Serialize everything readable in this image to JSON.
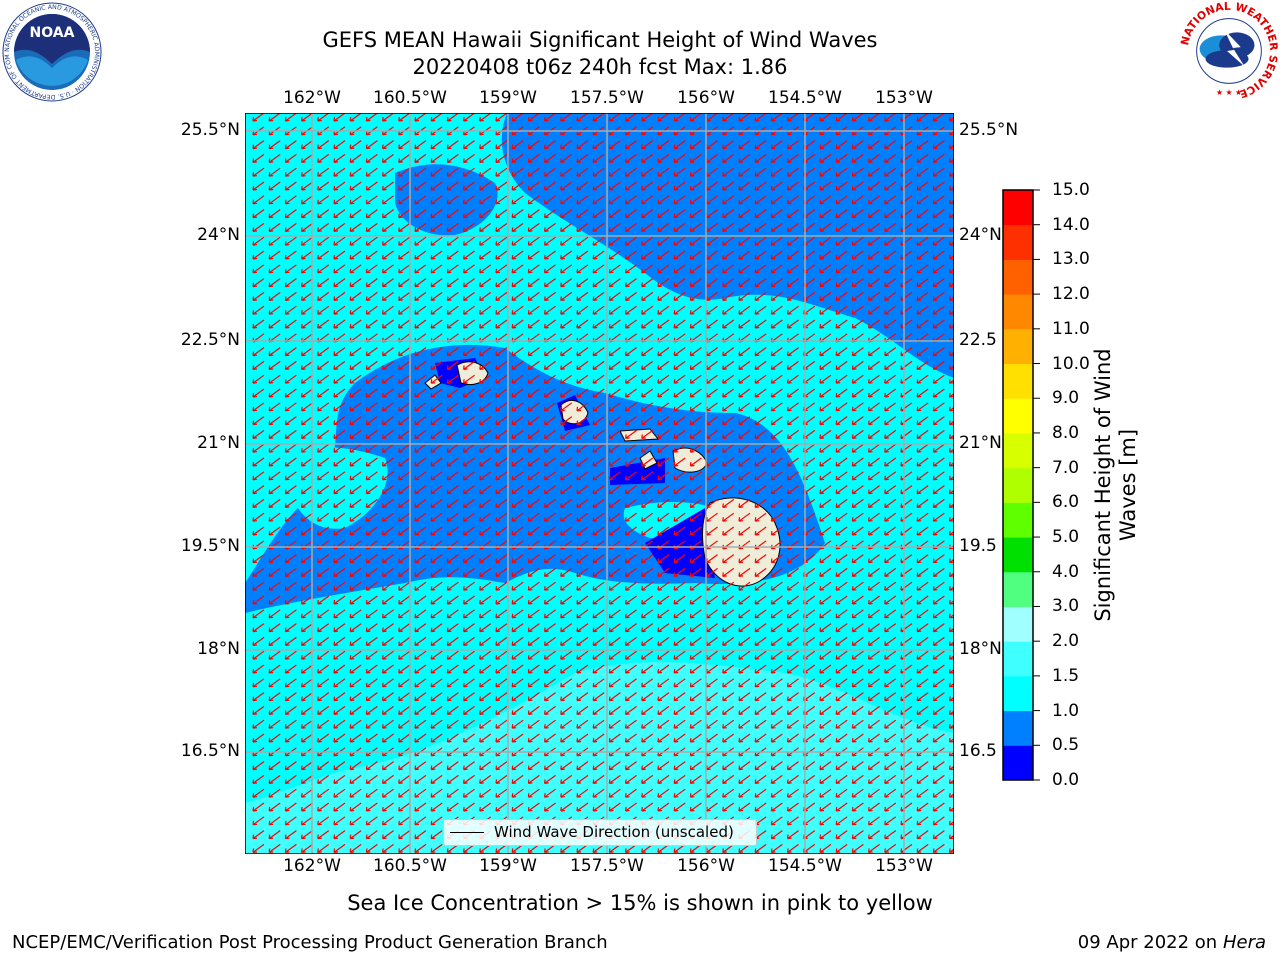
{
  "title_line1": "GEFS MEAN Hawaii Significant Height of Wind Waves",
  "title_line2": "20220408 t06z 240h fcst   Max: 1.86",
  "lon_labels": [
    "162°W",
    "160.5°W",
    "159°W",
    "157.5°W",
    "156°W",
    "154.5°W",
    "153°W"
  ],
  "lat_labels": [
    "25.5°N",
    "24°N",
    "22.5°N",
    "21°N",
    "19.5°N",
    "18°N",
    "16.5°N"
  ],
  "lat_labels_right": [
    "25.5°N",
    "24°N",
    "22.5",
    "21°N",
    "19.5",
    "18°N",
    "16.5"
  ],
  "map_data": {
    "lon_range": [
      -163,
      -152.3
    ],
    "lat_range": [
      15.0,
      25.8
    ],
    "wave_direction": "from northeast",
    "max_height_m": 1.86
  },
  "colorbar": {
    "label": "Significant Height of Wind Waves [m]",
    "ticks": [
      "0.0",
      "0.5",
      "1.0",
      "1.5",
      "2.0",
      "3.0",
      "4.0",
      "5.0",
      "6.0",
      "7.0",
      "8.0",
      "9.0",
      "10.0",
      "11.0",
      "12.0",
      "13.0",
      "14.0",
      "15.0"
    ],
    "colors": [
      "#0000ff",
      "#0080ff",
      "#00ffff",
      "#40ffff",
      "#a0ffff",
      "#50ff80",
      "#00e000",
      "#60ff00",
      "#b0ff00",
      "#d8ff00",
      "#ffff00",
      "#ffe000",
      "#ffb000",
      "#ff8800",
      "#ff6000",
      "#ff3000",
      "#ff0000"
    ]
  },
  "legend_text": "Wind Wave Direction (unscaled)",
  "note": "Sea Ice Concentration > 15% is shown in pink to yellow",
  "footer_left": "NCEP/EMC/Verification Post Processing Product Generation Branch",
  "footer_right_date": "09 Apr 2022 on ",
  "footer_right_host": "Hera",
  "noaa_logo_text": "NOAA",
  "noaa_ring_text": "NATIONAL OCEANIC AND ATMOSPHERIC ADMINISTRATION · U.S. DEPARTMENT OF COMMERCE",
  "nws_ring_text": "NATIONAL WEATHER SERVICE"
}
